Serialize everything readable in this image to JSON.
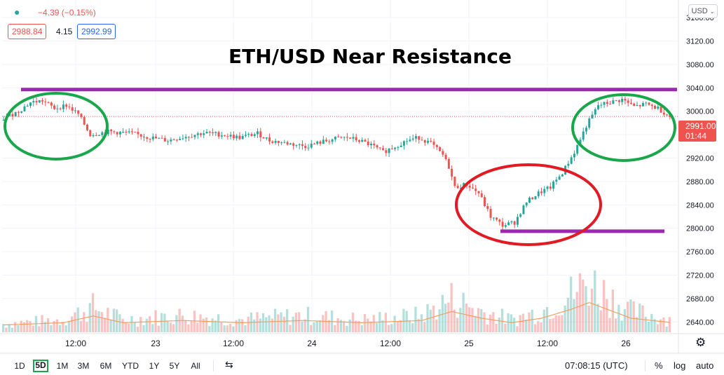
{
  "header": {
    "change_text": "−4.39 (−0.15%)",
    "bid": "2988.84",
    "spread": "4.15",
    "ask": "2992.99",
    "currency": "USD"
  },
  "colors": {
    "up": "#26a69a",
    "down": "#ef5350",
    "resistance": "#9c27b0",
    "circle_green": "#1aa64a",
    "circle_red": "#e01b24"
  },
  "last_price": {
    "value": "2991.00",
    "countdown": "01:44"
  },
  "timeframes": [
    "1D",
    "5D",
    "1M",
    "3M",
    "6M",
    "YTD",
    "1Y",
    "5Y",
    "All"
  ],
  "active_timeframe": "5D",
  "bottom_right": {
    "time": "07:08:15 (UTC)",
    "percent": "%",
    "log": "log",
    "auto": "auto"
  },
  "chart_data": {
    "type": "candlestick",
    "title": "ETH/USD Near Resistance",
    "x_ticks": [
      "12:00",
      "23",
      "12:00",
      "24",
      "12:00",
      "25",
      "12:00",
      "26"
    ],
    "y_ticks": [
      3160,
      3120,
      3080,
      3040,
      3000,
      2960,
      2920,
      2880,
      2840,
      2800,
      2760,
      2720,
      2680,
      2640
    ],
    "ylim": [
      2620,
      3190
    ],
    "resistance_level": 3037,
    "support_level": 2795,
    "current_price": 2991,
    "price_path": [
      [
        0,
        2985
      ],
      [
        6,
        3000
      ],
      [
        10,
        3015
      ],
      [
        14,
        3018
      ],
      [
        18,
        3005
      ],
      [
        22,
        3010
      ],
      [
        26,
        2995
      ],
      [
        30,
        2960
      ],
      [
        36,
        2965
      ],
      [
        44,
        2962
      ],
      [
        50,
        2955
      ],
      [
        56,
        2950
      ],
      [
        62,
        2957
      ],
      [
        68,
        2963
      ],
      [
        74,
        2960
      ],
      [
        80,
        2955
      ],
      [
        86,
        2962
      ],
      [
        90,
        2950
      ],
      [
        96,
        2945
      ],
      [
        102,
        2940
      ],
      [
        108,
        2948
      ],
      [
        112,
        2953
      ],
      [
        116,
        2955
      ],
      [
        120,
        2950
      ],
      [
        124,
        2942
      ],
      [
        128,
        2930
      ],
      [
        132,
        2940
      ],
      [
        136,
        2950
      ],
      [
        140,
        2955
      ],
      [
        144,
        2945
      ],
      [
        148,
        2925
      ],
      [
        150,
        2905
      ],
      [
        152,
        2870
      ],
      [
        156,
        2875
      ],
      [
        160,
        2860
      ],
      [
        164,
        2820
      ],
      [
        168,
        2805
      ],
      [
        172,
        2810
      ],
      [
        176,
        2845
      ],
      [
        180,
        2860
      ],
      [
        184,
        2870
      ],
      [
        188,
        2895
      ],
      [
        192,
        2930
      ],
      [
        196,
        2975
      ],
      [
        200,
        3010
      ],
      [
        204,
        3015
      ],
      [
        208,
        3020
      ],
      [
        212,
        3008
      ],
      [
        216,
        3012
      ],
      [
        220,
        3005
      ],
      [
        224,
        2991
      ]
    ],
    "volume_path": [
      [
        0,
        2
      ],
      [
        20,
        3
      ],
      [
        30,
        6
      ],
      [
        40,
        3
      ],
      [
        60,
        4
      ],
      [
        80,
        3
      ],
      [
        100,
        4
      ],
      [
        120,
        3
      ],
      [
        140,
        4
      ],
      [
        150,
        8
      ],
      [
        160,
        5
      ],
      [
        170,
        3
      ],
      [
        180,
        5
      ],
      [
        190,
        9
      ],
      [
        196,
        12
      ],
      [
        200,
        10
      ],
      [
        210,
        5
      ],
      [
        224,
        3
      ]
    ],
    "grid": true
  }
}
